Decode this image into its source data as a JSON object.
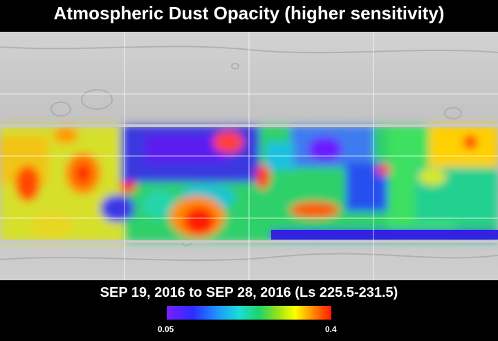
{
  "title": "Atmospheric Dust Opacity (higher sensitivity)",
  "date_range": "SEP 19, 2016 to SEP 28, 2016 (Ls 225.5-231.5)",
  "colorbar": {
    "min_label": "0.05",
    "max_label": "0.4",
    "colors": [
      "#7a1fff",
      "#2c2cff",
      "#1e90ff",
      "#17e0d6",
      "#1fd36b",
      "#8fe21a",
      "#ffff00",
      "#ff8a00",
      "#ff1a00"
    ]
  },
  "map_colors": {
    "terrain": "#c4c4c4",
    "terrain_dark": "#9a9a9a",
    "grid": "#ffffff"
  }
}
